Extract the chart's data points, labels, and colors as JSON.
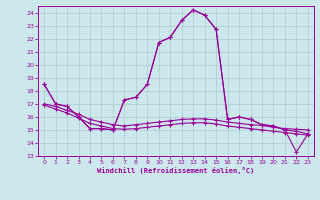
{
  "xlabel": "Windchill (Refroidissement éolien,°C)",
  "bg_color": "#cce8ec",
  "grid_color": "#aacccc",
  "line_color": "#990099",
  "xlim_min": -0.5,
  "xlim_max": 23.5,
  "ylim_min": 13,
  "ylim_max": 24.5,
  "yticks": [
    13,
    14,
    15,
    16,
    17,
    18,
    19,
    20,
    21,
    22,
    23,
    24
  ],
  "xticks": [
    0,
    1,
    2,
    3,
    4,
    5,
    6,
    7,
    8,
    9,
    10,
    11,
    12,
    13,
    14,
    15,
    16,
    17,
    18,
    19,
    20,
    21,
    22,
    23
  ],
  "s1_x": [
    0,
    1,
    2,
    3,
    4,
    5,
    6,
    7,
    8,
    9,
    10,
    11,
    12,
    13,
    14,
    15,
    16,
    17,
    18,
    19,
    20,
    21,
    22,
    23
  ],
  "s1_y": [
    18.5,
    17.0,
    16.8,
    16.0,
    15.1,
    15.1,
    15.0,
    17.3,
    17.5,
    18.5,
    21.7,
    22.1,
    23.4,
    24.2,
    23.8,
    22.7,
    15.8,
    16.0,
    15.8,
    15.4,
    15.3,
    15.0,
    14.9,
    14.7
  ],
  "s2_x": [
    0,
    1,
    2,
    3,
    4,
    5,
    6,
    7,
    8,
    9,
    10,
    11,
    12,
    13,
    14,
    15,
    16,
    17,
    18,
    19,
    20,
    21,
    22,
    23
  ],
  "s2_y": [
    18.5,
    17.0,
    16.8,
    16.0,
    15.1,
    15.1,
    15.0,
    17.3,
    17.5,
    18.5,
    21.7,
    22.1,
    23.4,
    24.2,
    23.8,
    22.7,
    15.8,
    16.0,
    15.8,
    15.4,
    15.3,
    15.0,
    13.3,
    14.7
  ],
  "s3_x": [
    0,
    1,
    2,
    3,
    4,
    5,
    6,
    7,
    8,
    9,
    10,
    11,
    12,
    13,
    14,
    15,
    16,
    17,
    18,
    19,
    20,
    21,
    22,
    23
  ],
  "s3_y": [
    17.0,
    16.8,
    16.5,
    16.2,
    15.8,
    15.6,
    15.4,
    15.3,
    15.4,
    15.5,
    15.6,
    15.7,
    15.8,
    15.85,
    15.85,
    15.75,
    15.6,
    15.5,
    15.4,
    15.35,
    15.2,
    15.1,
    15.05,
    15.0
  ],
  "s4_x": [
    0,
    1,
    2,
    3,
    4,
    5,
    6,
    7,
    8,
    9,
    10,
    11,
    12,
    13,
    14,
    15,
    16,
    17,
    18,
    19,
    20,
    21,
    22,
    23
  ],
  "s4_y": [
    16.9,
    16.6,
    16.3,
    15.9,
    15.5,
    15.3,
    15.1,
    15.05,
    15.1,
    15.2,
    15.3,
    15.4,
    15.5,
    15.55,
    15.55,
    15.45,
    15.3,
    15.2,
    15.1,
    15.0,
    14.9,
    14.8,
    14.7,
    14.6
  ]
}
